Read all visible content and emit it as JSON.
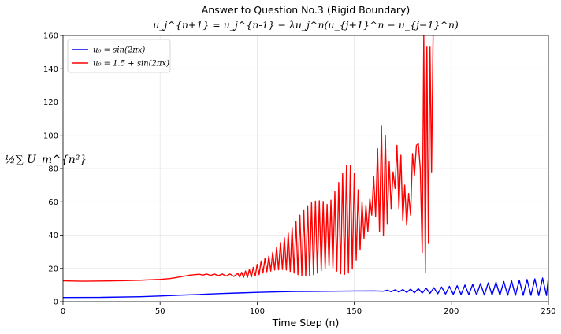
{
  "chart_data": {
    "type": "line",
    "title": "Answer to Question No.3 (Rigid Boundary)",
    "subtitle": "u_j^{n+1} = u_j^{n-1} − λu_j^n(u_{j+1}^n − u_{j−1}^n)",
    "xlabel": "Time Step (n)",
    "ylabel": "½∑ U_m^{n²}",
    "xlim": [
      0,
      250
    ],
    "ylim": [
      0,
      160
    ],
    "xticks": [
      0,
      50,
      100,
      150,
      200,
      250
    ],
    "yticks": [
      0,
      20,
      40,
      60,
      80,
      100,
      120,
      140,
      160
    ],
    "grid": true,
    "legend_position": "top-left",
    "series": [
      {
        "name": "u₀ = sin(2πx)",
        "color": "#0000ff",
        "points": [
          [
            0,
            2.5
          ],
          [
            20,
            2.6
          ],
          [
            40,
            3.0
          ],
          [
            50,
            3.4
          ],
          [
            60,
            3.9
          ],
          [
            70,
            4.3
          ],
          [
            80,
            4.8
          ],
          [
            90,
            5.2
          ],
          [
            100,
            5.6
          ],
          [
            110,
            5.9
          ],
          [
            120,
            6.1
          ],
          [
            130,
            6.2
          ],
          [
            140,
            6.3
          ],
          [
            150,
            6.4
          ],
          [
            160,
            6.5
          ],
          [
            165,
            6.3
          ],
          [
            167,
            6.9
          ],
          [
            169,
            6.0
          ],
          [
            171,
            7.1
          ],
          [
            173,
            5.8
          ],
          [
            175,
            7.3
          ],
          [
            177,
            5.6
          ],
          [
            179,
            7.5
          ],
          [
            181,
            5.4
          ],
          [
            183,
            7.8
          ],
          [
            185,
            5.2
          ],
          [
            187,
            8.1
          ],
          [
            189,
            5.0
          ],
          [
            191,
            8.4
          ],
          [
            193,
            4.8
          ],
          [
            195,
            8.8
          ],
          [
            197,
            4.6
          ],
          [
            199,
            9.2
          ],
          [
            201,
            4.4
          ],
          [
            203,
            9.6
          ],
          [
            205,
            4.3
          ],
          [
            207,
            10.0
          ],
          [
            209,
            4.2
          ],
          [
            211,
            10.4
          ],
          [
            213,
            4.1
          ],
          [
            215,
            10.9
          ],
          [
            217,
            4.0
          ],
          [
            219,
            11.3
          ],
          [
            221,
            4.0
          ],
          [
            223,
            11.7
          ],
          [
            225,
            3.9
          ],
          [
            227,
            12.1
          ],
          [
            229,
            3.9
          ],
          [
            231,
            12.5
          ],
          [
            233,
            3.8
          ],
          [
            235,
            12.9
          ],
          [
            237,
            3.8
          ],
          [
            239,
            13.3
          ],
          [
            241,
            3.8
          ],
          [
            243,
            13.7
          ],
          [
            245,
            3.7
          ],
          [
            247,
            14.2
          ],
          [
            249,
            3.7
          ],
          [
            250,
            14.6
          ]
        ]
      },
      {
        "name": "u₀ = 1.5 + sin(2πx)",
        "color": "#ff0000",
        "points": [
          [
            0,
            12.5
          ],
          [
            10,
            12.3
          ],
          [
            20,
            12.4
          ],
          [
            30,
            12.6
          ],
          [
            40,
            12.9
          ],
          [
            50,
            13.4
          ],
          [
            55,
            13.9
          ],
          [
            60,
            14.8
          ],
          [
            65,
            15.9
          ],
          [
            70,
            16.5
          ],
          [
            72,
            16.0
          ],
          [
            74,
            16.6
          ],
          [
            76,
            15.8
          ],
          [
            78,
            16.6
          ],
          [
            80,
            15.6
          ],
          [
            82,
            16.6
          ],
          [
            84,
            15.4
          ],
          [
            86,
            16.6
          ],
          [
            88,
            15.2
          ],
          [
            90,
            17.0
          ],
          [
            91,
            14.8
          ],
          [
            92,
            17.6
          ],
          [
            93,
            14.6
          ],
          [
            94,
            18.4
          ],
          [
            95,
            14.6
          ],
          [
            96,
            19.4
          ],
          [
            97,
            14.8
          ],
          [
            98,
            20.6
          ],
          [
            99,
            15.4
          ],
          [
            100,
            22.4
          ],
          [
            101,
            16.2
          ],
          [
            102,
            24.4
          ],
          [
            103,
            17.2
          ],
          [
            104,
            26.0
          ],
          [
            105,
            18.0
          ],
          [
            106,
            27.4
          ],
          [
            107,
            18.4
          ],
          [
            108,
            29.6
          ],
          [
            109,
            19.0
          ],
          [
            110,
            32.6
          ],
          [
            111,
            19.2
          ],
          [
            112,
            35.6
          ],
          [
            113,
            19.4
          ],
          [
            114,
            38.4
          ],
          [
            115,
            19.0
          ],
          [
            116,
            41.2
          ],
          [
            117,
            18.2
          ],
          [
            118,
            44.6
          ],
          [
            119,
            17.2
          ],
          [
            120,
            48.4
          ],
          [
            121,
            16.2
          ],
          [
            122,
            52.0
          ],
          [
            123,
            15.6
          ],
          [
            124,
            55.2
          ],
          [
            125,
            15.4
          ],
          [
            126,
            57.6
          ],
          [
            127,
            15.6
          ],
          [
            128,
            59.4
          ],
          [
            129,
            16.2
          ],
          [
            130,
            60.4
          ],
          [
            131,
            17.2
          ],
          [
            132,
            60.6
          ],
          [
            133,
            18.6
          ],
          [
            134,
            60.2
          ],
          [
            135,
            20.0
          ],
          [
            136,
            58.4
          ],
          [
            137,
            21.4
          ],
          [
            138,
            61.0
          ],
          [
            139,
            20.4
          ],
          [
            140,
            66.0
          ],
          [
            141,
            18.4
          ],
          [
            142,
            71.6
          ],
          [
            143,
            16.8
          ],
          [
            144,
            77.2
          ],
          [
            145,
            16.4
          ],
          [
            146,
            81.6
          ],
          [
            147,
            17.2
          ],
          [
            148,
            82.0
          ],
          [
            149,
            19.6
          ],
          [
            150,
            77.0
          ],
          [
            151,
            25.0
          ],
          [
            152,
            67.2
          ],
          [
            153,
            31.0
          ],
          [
            154,
            60.0
          ],
          [
            155,
            38.0
          ],
          [
            156,
            58.0
          ],
          [
            157,
            42.0
          ],
          [
            158,
            62.0
          ],
          [
            159,
            52.0
          ],
          [
            160,
            75.0
          ],
          [
            161,
            51.0
          ],
          [
            162,
            92.0
          ],
          [
            163,
            42.0
          ],
          [
            164,
            105.6
          ],
          [
            165,
            40.0
          ],
          [
            166,
            100.0
          ],
          [
            167,
            47.0
          ],
          [
            168,
            84.0
          ],
          [
            169,
            56.0
          ],
          [
            170,
            78.0
          ],
          [
            171,
            68.0
          ],
          [
            172,
            94.0
          ],
          [
            173,
            56.0
          ],
          [
            174,
            88.0
          ],
          [
            175,
            49.0
          ],
          [
            176,
            70.0
          ],
          [
            177,
            46.0
          ],
          [
            178,
            65.0
          ],
          [
            179,
            52.0
          ],
          [
            180,
            89.0
          ],
          [
            181,
            76.0
          ],
          [
            182,
            94.0
          ],
          [
            183,
            95.0
          ],
          [
            184,
            80.0
          ],
          [
            185,
            29.6
          ],
          [
            185.8,
            160.0
          ],
          [
            186.6,
            17.4
          ],
          [
            187.4,
            153.0
          ],
          [
            188.2,
            35.0
          ],
          [
            189,
            153.0
          ],
          [
            189.8,
            78.0
          ],
          [
            190.6,
            160.0
          ]
        ]
      }
    ]
  }
}
